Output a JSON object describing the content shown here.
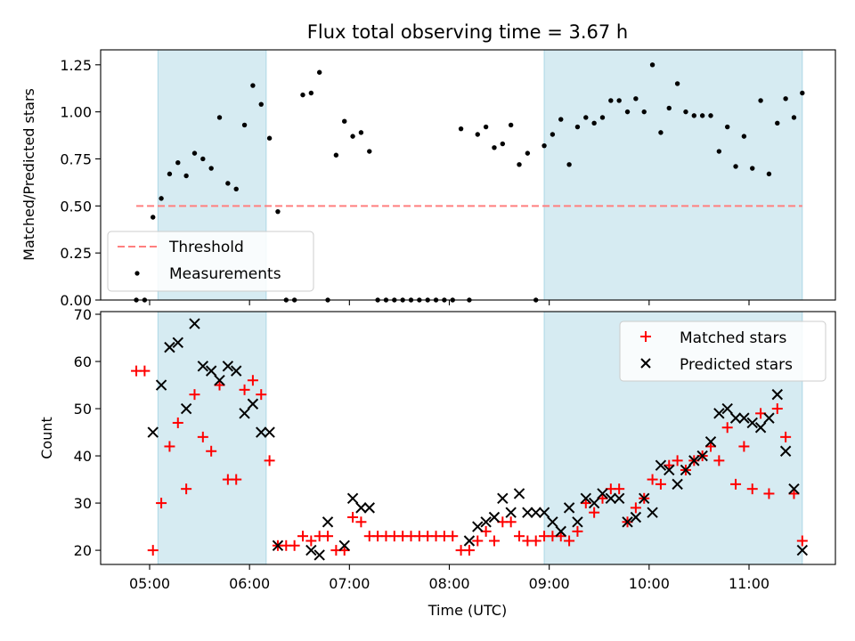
{
  "chart_data": [
    {
      "type": "scatter",
      "title": "Flux total observing time = 3.67 h",
      "xlabel": "",
      "ylabel": "Matched/Predicted stars",
      "ylim": [
        0,
        1.32
      ],
      "yticks": [
        "0.00",
        "0.25",
        "0.50",
        "0.75",
        "1.00",
        "1.25"
      ],
      "legend": {
        "position": "lower-left",
        "entries": [
          "Threshold",
          "Measurements"
        ]
      },
      "threshold": {
        "name": "Threshold",
        "value": 0.5,
        "x_range": [
          "04:52",
          "11:32"
        ],
        "color": "#ff7f7f"
      },
      "shaded_intervals": [
        [
          "05:05",
          "06:10"
        ],
        [
          "08:57",
          "11:32"
        ]
      ],
      "series": [
        {
          "name": "Measurements",
          "color": "#000000",
          "x": [
            "04:52",
            "04:57",
            "05:02",
            "05:07",
            "05:12",
            "05:17",
            "05:22",
            "05:27",
            "05:32",
            "05:37",
            "05:42",
            "05:47",
            "05:52",
            "05:57",
            "06:02",
            "06:07",
            "06:12",
            "06:17",
            "06:22",
            "06:27",
            "06:32",
            "06:37",
            "06:42",
            "06:47",
            "06:52",
            "06:57",
            "07:02",
            "07:07",
            "07:12",
            "07:17",
            "07:22",
            "07:27",
            "07:32",
            "07:37",
            "07:42",
            "07:47",
            "07:52",
            "07:57",
            "08:02",
            "08:07",
            "08:12",
            "08:17",
            "08:22",
            "08:27",
            "08:32",
            "08:37",
            "08:42",
            "08:47",
            "08:52",
            "08:57",
            "09:02",
            "09:07",
            "09:12",
            "09:17",
            "09:22",
            "09:27",
            "09:32",
            "09:37",
            "09:42",
            "09:47",
            "09:52",
            "09:57",
            "10:02",
            "10:07",
            "10:12",
            "10:17",
            "10:22",
            "10:27",
            "10:32",
            "10:37",
            "10:42",
            "10:47",
            "10:52",
            "10:57",
            "11:02",
            "11:07",
            "11:12",
            "11:17",
            "11:22",
            "11:27",
            "11:32"
          ],
          "y": [
            0.0,
            0.0,
            0.44,
            0.54,
            0.67,
            0.73,
            0.66,
            0.78,
            0.75,
            0.7,
            0.97,
            0.62,
            0.59,
            0.93,
            1.14,
            1.04,
            0.86,
            0.47,
            0.0,
            0.0,
            1.09,
            1.1,
            1.21,
            0.0,
            0.77,
            0.95,
            0.87,
            0.89,
            0.79,
            0.0,
            0.0,
            0.0,
            0.0,
            0.0,
            0.0,
            0.0,
            0.0,
            0.0,
            0.0,
            0.91,
            0.0,
            0.88,
            0.92,
            0.81,
            0.83,
            0.93,
            0.72,
            0.78,
            0.0,
            0.82,
            0.88,
            0.96,
            0.72,
            0.92,
            0.97,
            0.94,
            0.97,
            1.06,
            1.06,
            1.0,
            1.07,
            1.0,
            1.25,
            0.89,
            1.02,
            1.15,
            1.0,
            0.98,
            0.98,
            0.98,
            0.79,
            0.92,
            0.71,
            0.87,
            0.7,
            1.06,
            0.67,
            0.94,
            1.07,
            0.97,
            1.1
          ]
        }
      ]
    },
    {
      "type": "scatter",
      "title": "",
      "xlabel": "Time (UTC)",
      "ylabel": "Count",
      "ylim": [
        17,
        70
      ],
      "yticks": [
        "20",
        "30",
        "40",
        "50",
        "60",
        "70"
      ],
      "xticks": [
        "05:00",
        "06:00",
        "07:00",
        "08:00",
        "09:00",
        "10:00",
        "11:00"
      ],
      "legend": {
        "position": "top-right",
        "entries": [
          "Matched stars",
          "Predicted stars"
        ]
      },
      "shaded_intervals": [
        [
          "05:05",
          "06:10"
        ],
        [
          "08:57",
          "11:32"
        ]
      ],
      "series": [
        {
          "name": "Matched stars",
          "color": "#ff0000",
          "marker": "+",
          "x": [
            "04:52",
            "04:57",
            "05:02",
            "05:07",
            "05:12",
            "05:17",
            "05:22",
            "05:27",
            "05:32",
            "05:37",
            "05:42",
            "05:47",
            "05:52",
            "05:57",
            "06:02",
            "06:07",
            "06:12",
            "06:17",
            "06:22",
            "06:27",
            "06:32",
            "06:37",
            "06:42",
            "06:47",
            "06:52",
            "06:57",
            "07:02",
            "07:07",
            "07:12",
            "07:17",
            "07:22",
            "07:27",
            "07:32",
            "07:37",
            "07:42",
            "07:47",
            "07:52",
            "07:57",
            "08:02",
            "08:07",
            "08:12",
            "08:17",
            "08:22",
            "08:27",
            "08:32",
            "08:37",
            "08:42",
            "08:47",
            "08:52",
            "08:57",
            "09:02",
            "09:07",
            "09:12",
            "09:17",
            "09:22",
            "09:27",
            "09:32",
            "09:37",
            "09:42",
            "09:47",
            "09:52",
            "09:57",
            "10:02",
            "10:07",
            "10:12",
            "10:17",
            "10:22",
            "10:27",
            "10:32",
            "10:37",
            "10:42",
            "10:47",
            "10:52",
            "10:57",
            "11:02",
            "11:07",
            "11:12",
            "11:17",
            "11:22",
            "11:27",
            "11:32"
          ],
          "y": [
            58,
            58,
            20,
            30,
            42,
            47,
            33,
            53,
            44,
            41,
            55,
            35,
            35,
            54,
            56,
            53,
            39,
            21,
            21,
            21,
            23,
            22,
            23,
            23,
            20,
            20,
            27,
            26,
            23,
            23,
            23,
            23,
            23,
            23,
            23,
            23,
            23,
            23,
            23,
            20,
            20,
            22,
            24,
            22,
            26,
            26,
            23,
            22,
            22,
            23,
            23,
            23,
            22,
            24,
            30,
            28,
            31,
            33,
            33,
            26,
            29,
            31,
            35,
            34,
            38,
            39,
            37,
            39,
            40,
            42,
            39,
            46,
            34,
            42,
            33,
            49,
            32,
            50,
            44,
            32,
            22
          ]
        },
        {
          "name": "Predicted stars",
          "color": "#000000",
          "marker": "x",
          "x": [
            "05:02",
            "05:07",
            "05:12",
            "05:17",
            "05:22",
            "05:27",
            "05:32",
            "05:37",
            "05:42",
            "05:47",
            "05:52",
            "05:57",
            "06:02",
            "06:07",
            "06:12",
            "06:17",
            "06:37",
            "06:42",
            "06:47",
            "06:57",
            "07:02",
            "07:07",
            "07:12",
            "08:12",
            "08:17",
            "08:22",
            "08:27",
            "08:32",
            "08:37",
            "08:42",
            "08:47",
            "08:52",
            "08:57",
            "09:02",
            "09:07",
            "09:12",
            "09:17",
            "09:22",
            "09:27",
            "09:32",
            "09:37",
            "09:42",
            "09:47",
            "09:52",
            "09:57",
            "10:02",
            "10:07",
            "10:12",
            "10:17",
            "10:22",
            "10:27",
            "10:32",
            "10:37",
            "10:42",
            "10:47",
            "10:52",
            "10:57",
            "11:02",
            "11:07",
            "11:12",
            "11:17",
            "11:22",
            "11:27",
            "11:32"
          ],
          "y": [
            45,
            55,
            63,
            64,
            50,
            68,
            59,
            58,
            56,
            59,
            58,
            49,
            51,
            45,
            45,
            21,
            20,
            19,
            26,
            21,
            31,
            29,
            29,
            22,
            25,
            26,
            27,
            31,
            28,
            32,
            28,
            28,
            28,
            26,
            24,
            29,
            26,
            31,
            30,
            32,
            31,
            31,
            26,
            27,
            31,
            28,
            38,
            37,
            34,
            37,
            39,
            40,
            43,
            49,
            50,
            48,
            48,
            47,
            46,
            48,
            53,
            41,
            33,
            20
          ]
        }
      ]
    }
  ]
}
